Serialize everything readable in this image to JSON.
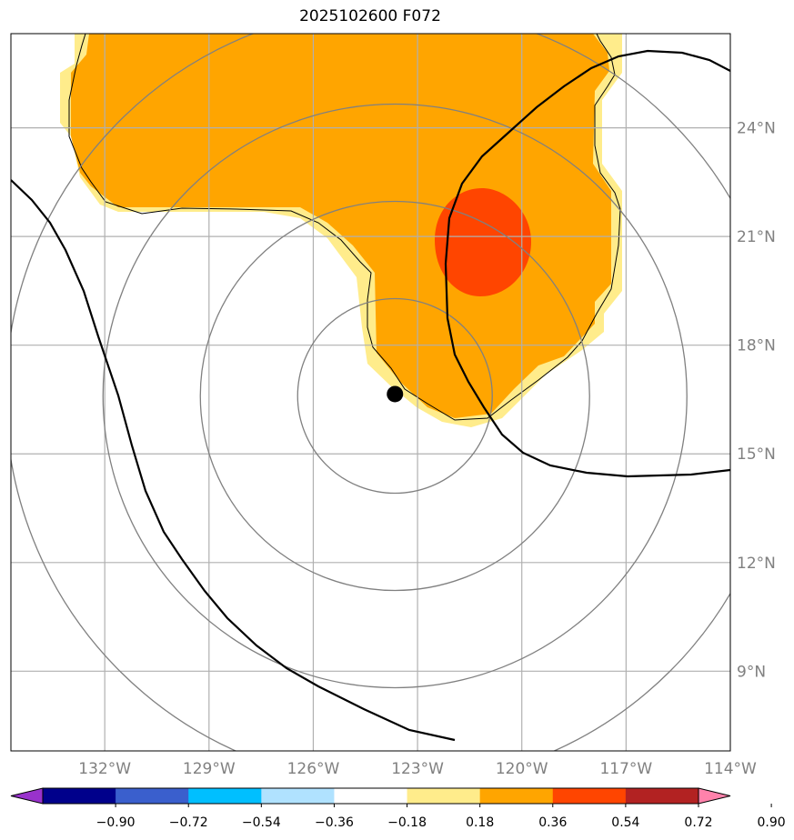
{
  "title": "2025102600 F072",
  "map": {
    "lon_range": [
      -134.7,
      -114.0
    ],
    "lat_range": [
      6.8,
      26.6
    ],
    "lon_ticks": [
      {
        "value": -132,
        "label": "132°W"
      },
      {
        "value": -129,
        "label": "129°W"
      },
      {
        "value": -126,
        "label": "126°W"
      },
      {
        "value": -123,
        "label": "123°W"
      },
      {
        "value": -120,
        "label": "120°W"
      },
      {
        "value": -117,
        "label": "117°W"
      },
      {
        "value": -114,
        "label": "114°W"
      }
    ],
    "lat_ticks": [
      {
        "value": 24,
        "label": "24°N"
      },
      {
        "value": 21,
        "label": "21°N"
      },
      {
        "value": 18,
        "label": "18°N"
      },
      {
        "value": 15,
        "label": "15°N"
      },
      {
        "value": 12,
        "label": "12°N"
      },
      {
        "value": 9,
        "label": "9°N"
      }
    ],
    "gridlines": true,
    "storm_center": {
      "lon": -123.65,
      "lat": 16.65
    },
    "range_rings_deg": [
      2.8,
      5.6,
      8.4,
      11.2
    ],
    "colors": {
      "grid": "#b0b0b0",
      "rings": "#808080",
      "shade_low": "#ffec8b",
      "shade_mid": "#ffa500",
      "shade_high": "#ff4500",
      "contour": "#000000"
    }
  },
  "colorbar": {
    "levels": [
      "−0.90",
      "−0.72",
      "−0.54",
      "−0.36",
      "−0.18",
      "0.18",
      "0.36",
      "0.54",
      "0.72",
      "0.90"
    ],
    "colors": [
      "#9932cc",
      "#00008b",
      "#3a5fcd",
      "#00bfff",
      "#b0e2ff",
      "#ffffff",
      "#ffec8b",
      "#ffa500",
      "#ff4500",
      "#b22222",
      "#ff82ab"
    ]
  }
}
